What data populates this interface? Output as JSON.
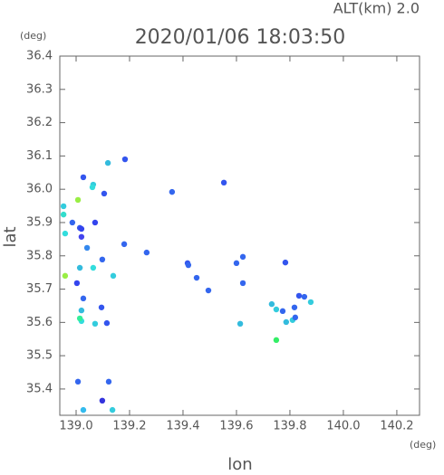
{
  "chart_data": {
    "type": "scatter",
    "title": "2020/01/06 18:03:50",
    "subtitle": "ALT(km)  2.0",
    "y_unit": "(deg)",
    "x_unit": "(deg)",
    "xlabel": "lon",
    "ylabel": "lat",
    "xlim": [
      138.939,
      140.285
    ],
    "ylim": [
      35.321,
      36.4
    ],
    "xticks": [
      {
        "value": 139.0,
        "label": "139.0"
      },
      139.2,
      139.4,
      139.6,
      139.8,
      {
        "value": 140.0,
        "label": "140.0"
      },
      140.2
    ],
    "yticks": [
      36.4,
      36.3,
      36.2,
      36.1,
      {
        "value": 36.0,
        "label": "36.0"
      },
      35.9,
      35.8,
      35.7,
      35.6,
      35.5,
      35.4
    ],
    "x": [
      139.027,
      139.064,
      139.061,
      139.007,
      138.953,
      138.953,
      139.105,
      139.071,
      139.014,
      139.02,
      138.959,
      139.02,
      138.986,
      139.041,
      139.014,
      139.064,
      139.098,
      139.139,
      138.959,
      139.003,
      139.027,
      139.02,
      139.02,
      139.014,
      139.071,
      139.115,
      139.095,
      139.007,
      139.122,
      139.098,
      139.027,
      139.136,
      139.119,
      139.183,
      139.359,
      139.553,
      139.18,
      139.264,
      139.417,
      139.42,
      139.451,
      139.495,
      139.6,
      139.624,
      139.783,
      139.624,
      139.614,
      139.732,
      139.749,
      139.773,
      139.817,
      139.834,
      139.854,
      139.878,
      139.81,
      139.82,
      139.749,
      139.786
    ],
    "values": [
      36.036,
      36.014,
      36.006,
      35.968,
      35.949,
      35.924,
      35.987,
      35.9,
      35.884,
      35.881,
      35.867,
      35.857,
      35.9,
      35.824,
      35.764,
      35.764,
      35.789,
      35.74,
      35.74,
      35.718,
      35.672,
      35.636,
      35.604,
      35.612,
      35.596,
      35.598,
      35.645,
      35.422,
      35.422,
      35.365,
      35.337,
      35.337,
      36.079,
      36.09,
      35.992,
      36.02,
      35.835,
      35.81,
      35.778,
      35.772,
      35.734,
      35.696,
      35.778,
      35.797,
      35.78,
      35.718,
      35.596,
      35.655,
      35.639,
      35.634,
      35.645,
      35.68,
      35.677,
      35.661,
      35.607,
      35.615,
      35.547,
      35.601
    ],
    "colors": [
      "#3355ee",
      "#33ccdd",
      "#33dddd",
      "#99ee44",
      "#33ccdd",
      "#33ddcc",
      "#3355ee",
      "#3344ee",
      "#3355ee",
      "#3344ee",
      "#33dddd",
      "#4444ee",
      "#3366ee",
      "#3388ee",
      "#33bbdd",
      "#33dddd",
      "#3366ee",
      "#33ccdd",
      "#99ee44",
      "#3344ee",
      "#3366ee",
      "#33bbdd",
      "#33dddd",
      "#33ee99",
      "#33ccdd",
      "#3355ee",
      "#3355ee",
      "#3366ee",
      "#3366ee",
      "#3333dd",
      "#33bbee",
      "#33ccdd",
      "#33bbdd",
      "#3355ee",
      "#3366ee",
      "#3355ee",
      "#3366ee",
      "#3366ee",
      "#3355ee",
      "#3366ee",
      "#3366ee",
      "#3366ee",
      "#3366ee",
      "#3366ee",
      "#3355ee",
      "#3366ee",
      "#33bbdd",
      "#33bbdd",
      "#33ccdd",
      "#3366ee",
      "#3366ee",
      "#3355ee",
      "#3366ee",
      "#33ccdd",
      "#33ccdd",
      "#3366ee",
      "#33ee66",
      "#33bbdd"
    ]
  }
}
